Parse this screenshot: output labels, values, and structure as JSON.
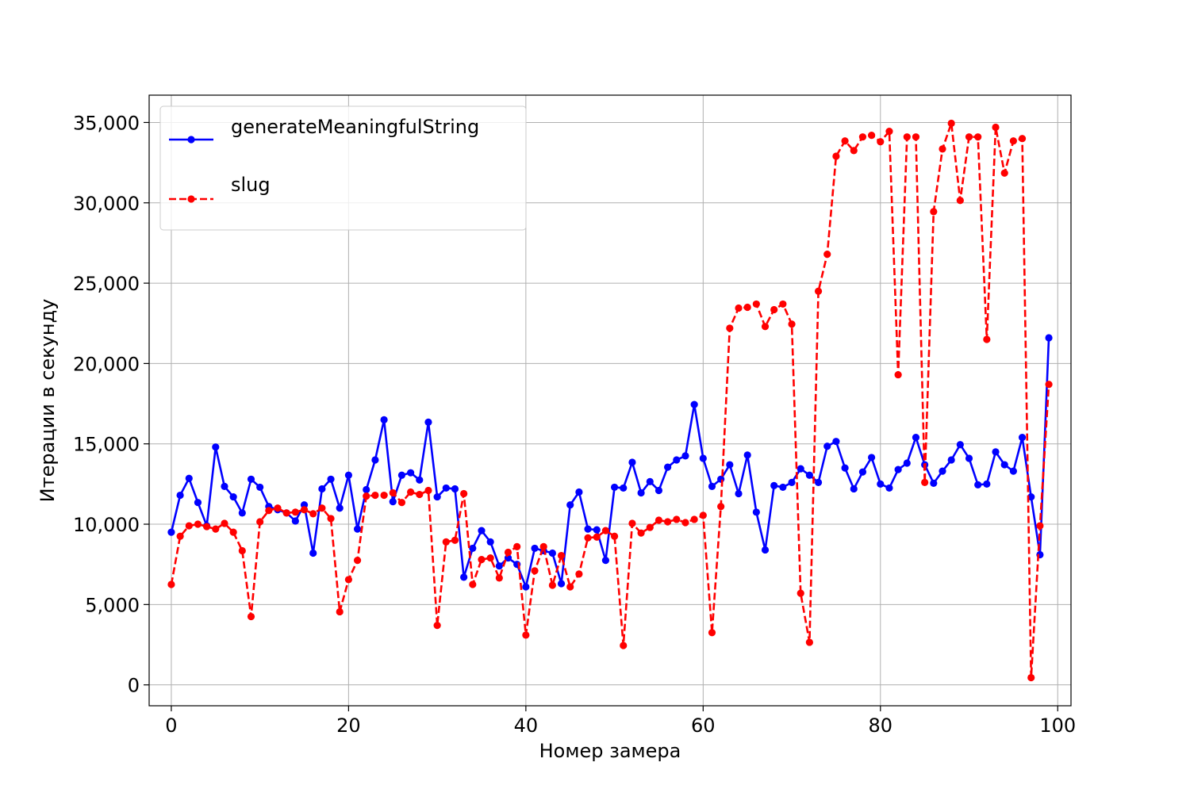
{
  "chart_data": {
    "type": "line",
    "title": "",
    "xlabel": "Номер замера",
    "ylabel": "Итерации в секунду",
    "xlim": [
      -2.5,
      101.5
    ],
    "ylim": [
      -1300,
      36700
    ],
    "xticks": [
      0,
      20,
      40,
      60,
      80,
      100
    ],
    "xtick_labels": [
      "0",
      "20",
      "40",
      "60",
      "80",
      "100"
    ],
    "yticks": [
      0,
      5000,
      10000,
      15000,
      20000,
      25000,
      30000,
      35000
    ],
    "ytick_labels": [
      "0",
      "5,000",
      "10,000",
      "15,000",
      "20,000",
      "25,000",
      "30,000",
      "35,000"
    ],
    "grid": true,
    "legend_position": "upper-left",
    "series": [
      {
        "name": "generateMeaningfulString",
        "color": "#0000ff",
        "line_style": "solid",
        "marker": "circle",
        "values": [
          9500,
          11800,
          12850,
          11350,
          9900,
          14800,
          12350,
          11700,
          10700,
          12800,
          12300,
          11100,
          10900,
          10700,
          10200,
          11200,
          8200,
          12200,
          12800,
          11000,
          13050,
          9700,
          12150,
          14000,
          16500,
          11400,
          13050,
          13200,
          12750,
          16350,
          11700,
          12250,
          12200,
          6700,
          8500,
          9600,
          8900,
          7400,
          7900,
          7500,
          6100,
          8500,
          8350,
          8200,
          6300,
          11200,
          12000,
          9700,
          9650,
          7750,
          12300,
          12250,
          13850,
          11950,
          12650,
          12100,
          13550,
          14000,
          14250,
          17450,
          14100,
          12350,
          12800,
          13700,
          11900,
          14300,
          10750,
          8400,
          12400,
          12300,
          12600,
          13450,
          13050,
          12600,
          14850,
          15150,
          13500,
          12200,
          13250,
          14150,
          12500,
          12250,
          13400,
          13800,
          15400,
          13700,
          12550,
          13300,
          14000,
          14950,
          14100,
          12450,
          12500,
          14500,
          13700,
          13300,
          15400,
          11700,
          8100,
          21600
        ]
      },
      {
        "name": "slug",
        "color": "#ff0000",
        "line_style": "dashed",
        "marker": "circle",
        "values": [
          6250,
          9250,
          9900,
          10000,
          9850,
          9700,
          10050,
          9500,
          8350,
          4250,
          10150,
          10850,
          11000,
          10700,
          10750,
          10900,
          10650,
          11000,
          10350,
          4550,
          6550,
          7750,
          11750,
          11800,
          11800,
          11950,
          11350,
          12000,
          11850,
          12100,
          3700,
          8900,
          9000,
          11900,
          6250,
          7800,
          7900,
          6650,
          8250,
          8600,
          3100,
          7100,
          8600,
          6200,
          8050,
          6100,
          6900,
          9150,
          9200,
          9600,
          9250,
          2450,
          10050,
          9450,
          9800,
          10250,
          10150,
          10300,
          10100,
          10300,
          10550,
          3250,
          11100,
          22200,
          23450,
          23500,
          23700,
          22300,
          23350,
          23700,
          22450,
          5700,
          2650,
          24500,
          26800,
          32900,
          33850,
          33250,
          34100,
          34200,
          33800,
          34450,
          19300,
          34100,
          34100,
          12600,
          29450,
          33350,
          34950,
          30150,
          34100,
          34100,
          21500,
          34700,
          31850,
          33850,
          34000,
          450,
          9900,
          18700
        ]
      }
    ]
  },
  "colors": {
    "grid": "#b0b0b0",
    "axes": "#000000",
    "background": "#ffffff"
  }
}
